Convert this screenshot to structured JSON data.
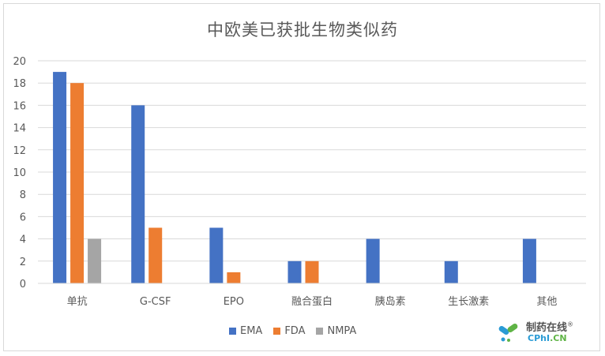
{
  "chart_data": {
    "type": "bar",
    "title": "中欧美已获批生物类似药",
    "categories": [
      "单抗",
      "G-CSF",
      "EPO",
      "融合蛋白",
      "胰岛素",
      "生长激素",
      "其他"
    ],
    "series": [
      {
        "name": "EMA",
        "color": "#4472c4",
        "values": [
          19,
          16,
          5,
          2,
          4,
          2,
          4
        ]
      },
      {
        "name": "FDA",
        "color": "#ed7d31",
        "values": [
          18,
          5,
          1,
          2,
          0,
          0,
          0
        ]
      },
      {
        "name": "NMPA",
        "color": "#a5a5a5",
        "values": [
          4,
          0,
          0,
          0,
          0,
          0,
          0
        ]
      }
    ],
    "ylim": [
      0,
      20
    ],
    "yticks": [
      "0",
      "2",
      "4",
      "6",
      "8",
      "10",
      "12",
      "14",
      "16",
      "18",
      "20"
    ],
    "grid": true,
    "legend_position": "bottom"
  },
  "watermark": {
    "cn": "制药在线",
    "reg": "®",
    "en_main": "CPhI",
    "en_suffix": ".CN"
  }
}
